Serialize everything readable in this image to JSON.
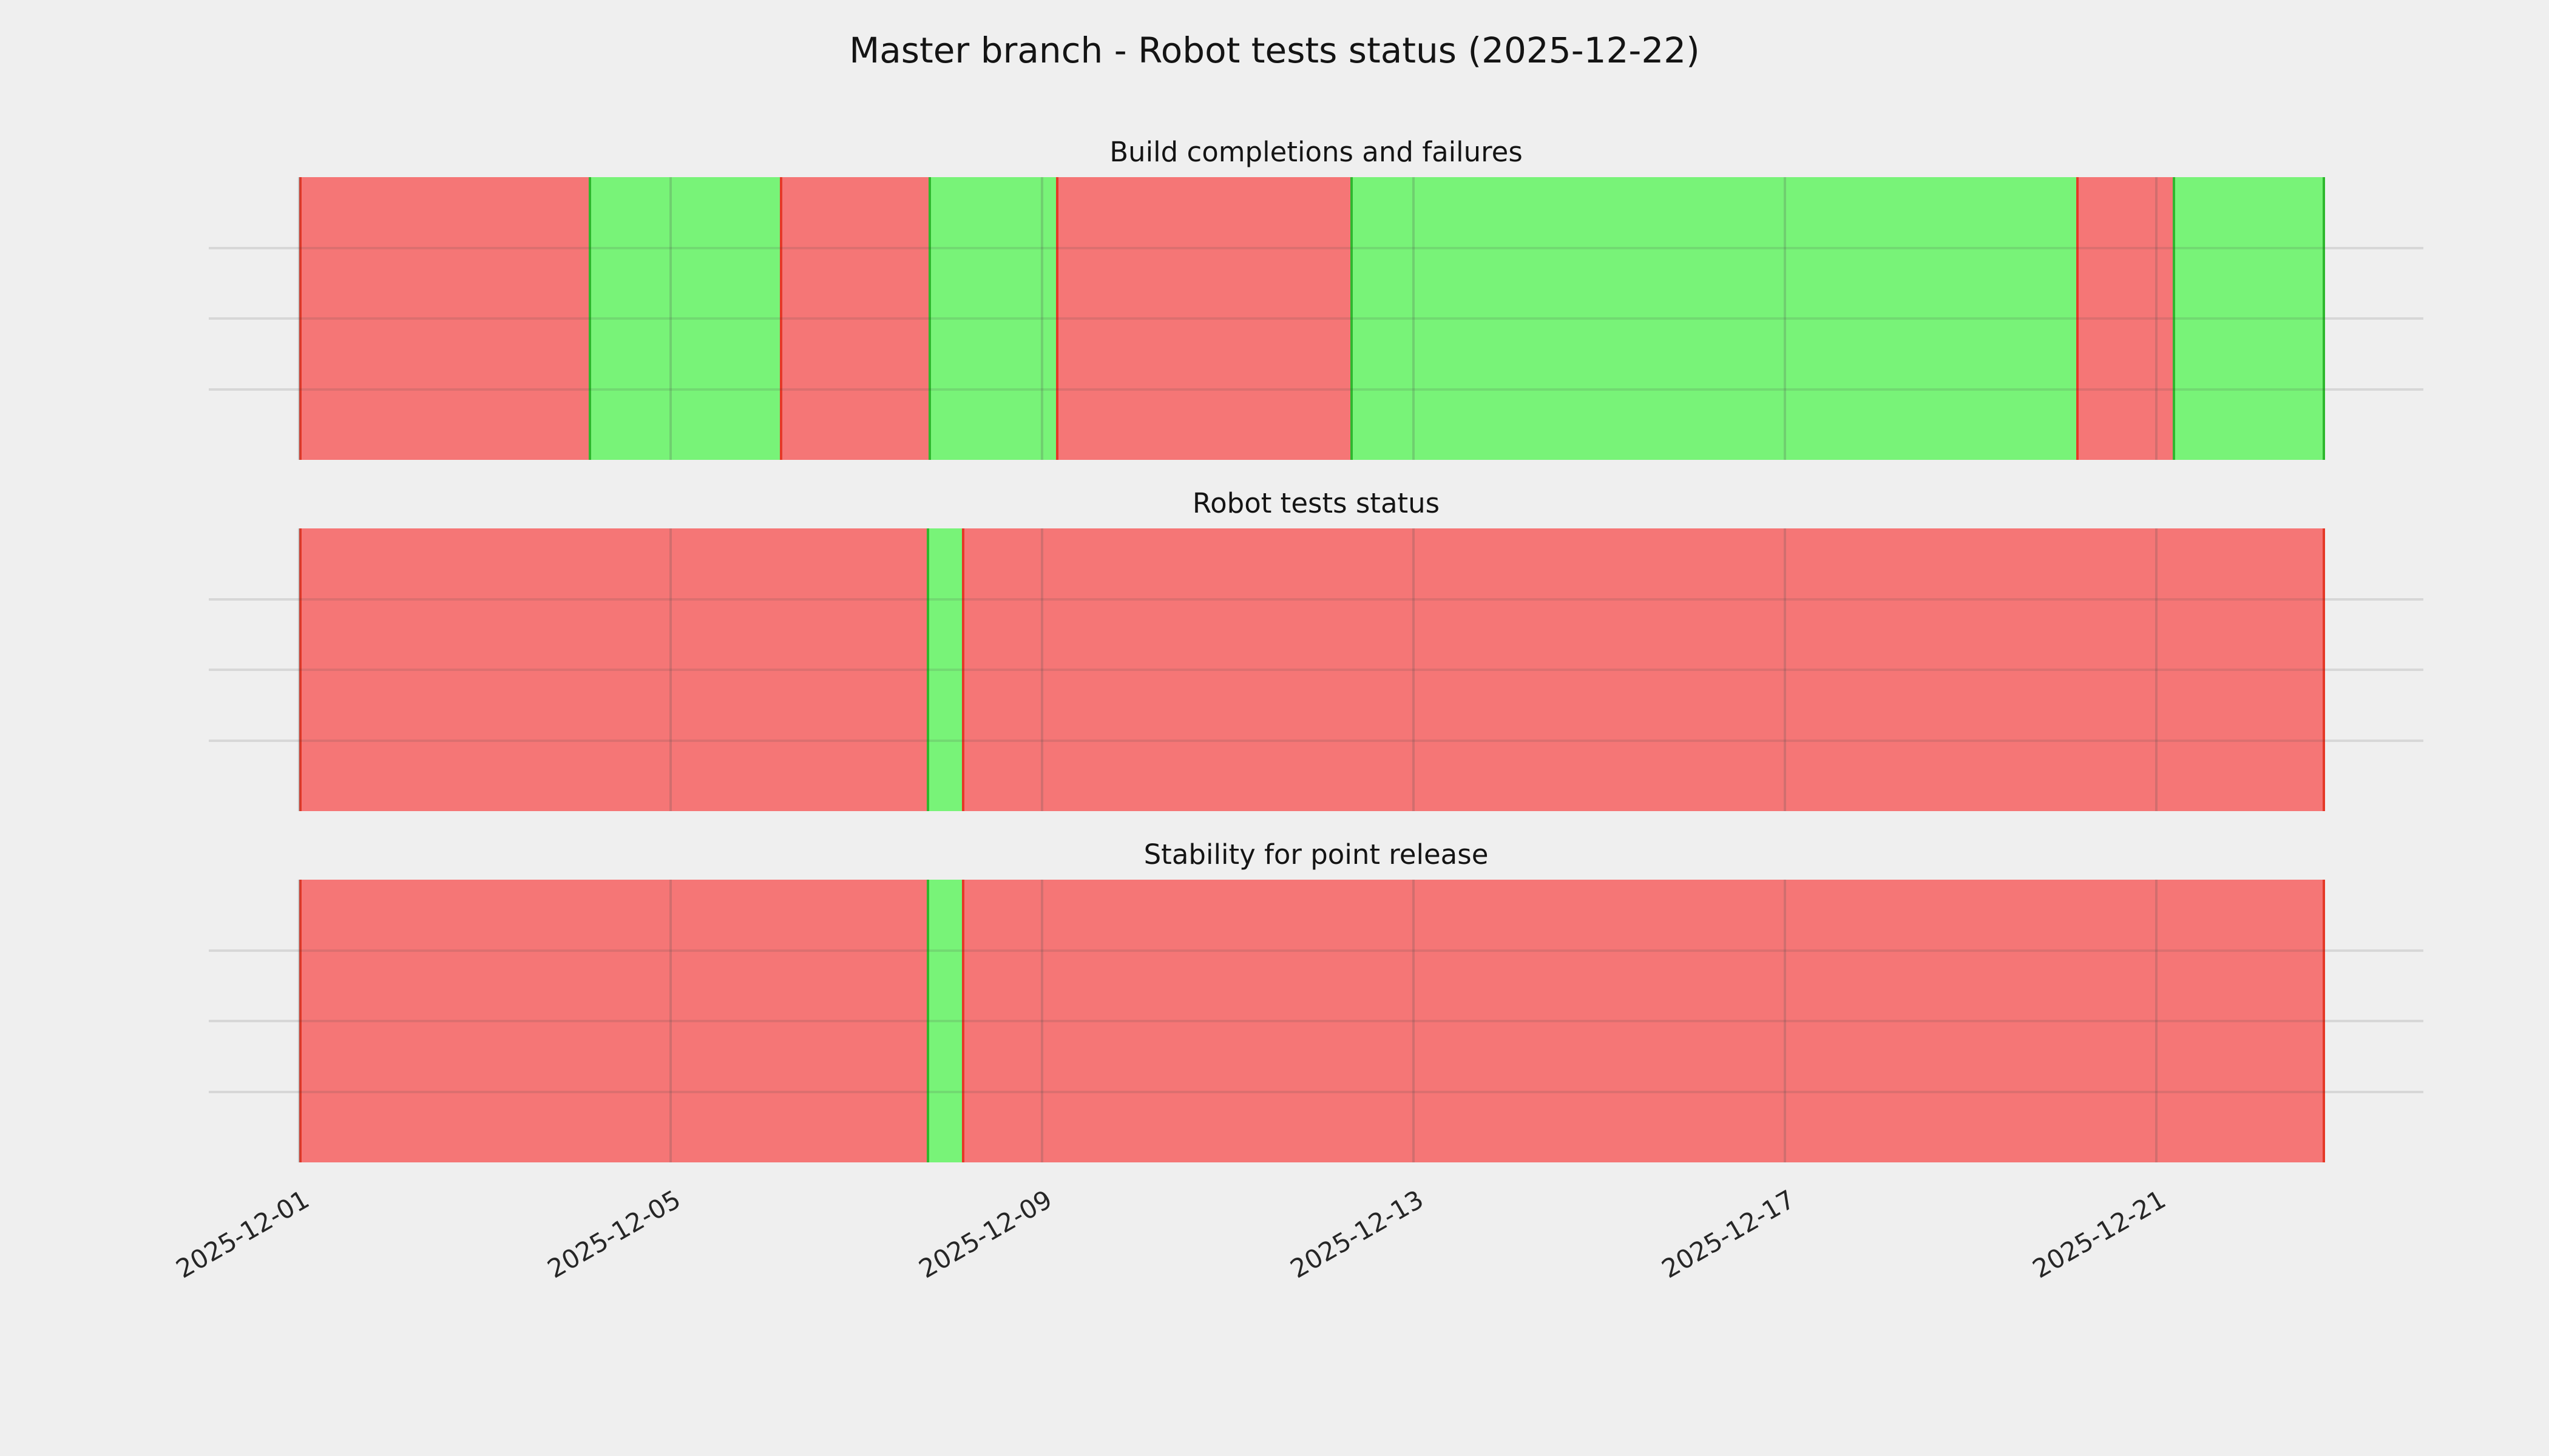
{
  "figure": {
    "title": "Master branch - Robot tests status (2025-12-22)",
    "background_color": "#efefef",
    "text_color": "#141414"
  },
  "status_colors": {
    "pass_fill": "#78f378",
    "pass_edge": "#2eb82e",
    "fail_fill": "#f57676",
    "fail_edge": "#e53928"
  },
  "x_axis": {
    "tick_labels": [
      "2025-12-01",
      "2025-12-05",
      "2025-12-09",
      "2025-12-13",
      "2025-12-17",
      "2025-12-21"
    ],
    "tick_day_offsets": [
      0,
      4,
      8,
      12,
      16,
      20
    ],
    "label_rotation_deg": 30,
    "timeline_start": "2025-12-01 00:00",
    "timeline_end": "2025-12-22 20:00",
    "timeline_total_days": 21.82,
    "grid": true
  },
  "chart_data": [
    {
      "type": "bar",
      "subtype": "horizontal-status-timeline",
      "title": "Build completions and failures",
      "grid": true,
      "legend": false,
      "segments": [
        {
          "status": "fail",
          "start_day": 0.0,
          "end_day": 3.12,
          "start": "2025-12-01 00:00",
          "end": "2025-12-04 03:00"
        },
        {
          "status": "pass",
          "start_day": 3.12,
          "end_day": 5.18,
          "start": "2025-12-04 03:00",
          "end": "2025-12-06 04:00"
        },
        {
          "status": "fail",
          "start_day": 5.18,
          "end_day": 6.78,
          "start": "2025-12-06 04:00",
          "end": "2025-12-07 19:00"
        },
        {
          "status": "pass",
          "start_day": 6.78,
          "end_day": 8.15,
          "start": "2025-12-07 19:00",
          "end": "2025-12-09 04:00"
        },
        {
          "status": "fail",
          "start_day": 8.15,
          "end_day": 11.32,
          "start": "2025-12-09 04:00",
          "end": "2025-12-12 08:00"
        },
        {
          "status": "pass",
          "start_day": 11.32,
          "end_day": 19.14,
          "start": "2025-12-12 08:00",
          "end": "2025-12-20 03:00"
        },
        {
          "status": "fail",
          "start_day": 19.14,
          "end_day": 20.18,
          "start": "2025-12-20 03:00",
          "end": "2025-12-21 04:00"
        },
        {
          "status": "pass",
          "start_day": 20.18,
          "end_day": 21.82,
          "start": "2025-12-21 04:00",
          "end": "2025-12-22 20:00"
        }
      ]
    },
    {
      "type": "bar",
      "subtype": "horizontal-status-timeline",
      "title": "Robot tests status",
      "grid": true,
      "legend": false,
      "segments": [
        {
          "status": "fail",
          "start_day": 0.0,
          "end_day": 6.76,
          "start": "2025-12-01 00:00",
          "end": "2025-12-07 18:00"
        },
        {
          "status": "pass",
          "start_day": 6.76,
          "end_day": 7.14,
          "start": "2025-12-07 18:00",
          "end": "2025-12-08 03:00"
        },
        {
          "status": "fail",
          "start_day": 7.14,
          "end_day": 21.82,
          "start": "2025-12-08 03:00",
          "end": "2025-12-22 20:00"
        }
      ]
    },
    {
      "type": "bar",
      "subtype": "horizontal-status-timeline",
      "title": "Stability for point release",
      "grid": true,
      "legend": false,
      "segments": [
        {
          "status": "fail",
          "start_day": 0.0,
          "end_day": 6.76,
          "start": "2025-12-01 00:00",
          "end": "2025-12-07 18:00"
        },
        {
          "status": "pass",
          "start_day": 6.76,
          "end_day": 7.14,
          "start": "2025-12-07 18:00",
          "end": "2025-12-08 03:00"
        },
        {
          "status": "fail",
          "start_day": 7.14,
          "end_day": 21.82,
          "start": "2025-12-08 03:00",
          "end": "2025-12-22 20:00"
        }
      ]
    }
  ]
}
